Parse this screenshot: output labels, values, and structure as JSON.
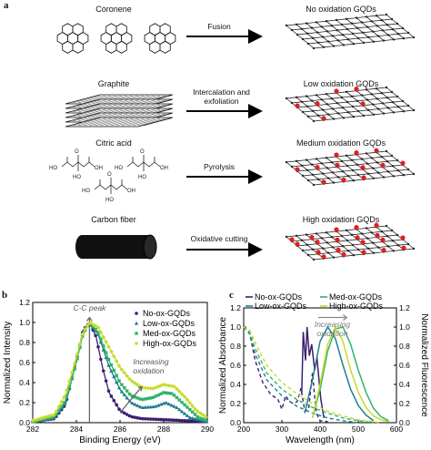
{
  "panel_a": {
    "letter": "a",
    "rows": [
      {
        "source": "Coronene",
        "process": [
          "Fusion"
        ],
        "product": "No oxidation GQDs",
        "ox_sites": 0
      },
      {
        "source": "Graphite",
        "process": [
          "Intercalation and",
          "exfoliation"
        ],
        "product": "Low oxidation GQDs",
        "ox_sites": 6
      },
      {
        "source": "Citric acid",
        "process": [
          "Pyrolysis"
        ],
        "product": "Medium oxidation GQDs",
        "ox_sites": 12
      },
      {
        "source": "Carbon fiber",
        "process": [
          "Oxidative cutting"
        ],
        "product": "High oxidation GQDs",
        "ox_sites": 20
      }
    ],
    "colors": {
      "lattice": "#222222",
      "oxygen": "#e02020"
    }
  },
  "chart_data": [
    {
      "panel": "b",
      "type": "line",
      "xlabel": "Binding Energy (eV)",
      "ylabel": "Normalized Intensity",
      "xlim": [
        282,
        290
      ],
      "ylim": [
        0,
        1.2
      ],
      "xticks": [
        "282",
        "284",
        "286",
        "288",
        "290"
      ],
      "yticks": [
        "0.0",
        "0.2",
        "0.4",
        "0.6",
        "0.8",
        "1.0",
        "1.2"
      ],
      "annotations": {
        "peak": "C-C peak",
        "trend": [
          "Increasing",
          "oxidation"
        ]
      },
      "legend_position": "top-right",
      "series": [
        {
          "name": "No-ox-GQDs",
          "color": "#3b1f6e",
          "marker": "circle",
          "x": [
            282,
            283,
            283.5,
            284,
            284.3,
            284.6,
            284.9,
            285.2,
            285.5,
            286,
            286.5,
            287,
            288,
            289,
            290
          ],
          "y": [
            0.01,
            0.04,
            0.18,
            0.62,
            0.92,
            1.0,
            0.86,
            0.55,
            0.3,
            0.12,
            0.06,
            0.04,
            0.03,
            0.02,
            0.01
          ]
        },
        {
          "name": "Low-ox-GQDs",
          "color": "#1f7e8c",
          "marker": "triangle",
          "x": [
            282,
            283,
            283.5,
            284,
            284.3,
            284.6,
            285,
            285.5,
            286,
            286.5,
            287,
            287.6,
            288.1,
            288.6,
            289.2,
            290
          ],
          "y": [
            0.01,
            0.05,
            0.2,
            0.6,
            0.9,
            1.0,
            0.88,
            0.56,
            0.33,
            0.2,
            0.15,
            0.16,
            0.2,
            0.15,
            0.05,
            0.01
          ]
        },
        {
          "name": "Med-ox-GQDs",
          "color": "#2fb36b",
          "marker": "square",
          "x": [
            282,
            283,
            283.5,
            284,
            284.3,
            284.6,
            285,
            285.5,
            286,
            286.5,
            287,
            287.5,
            288,
            288.4,
            289,
            289.6,
            290
          ],
          "y": [
            0.01,
            0.06,
            0.22,
            0.6,
            0.88,
            1.0,
            0.9,
            0.62,
            0.4,
            0.27,
            0.23,
            0.25,
            0.3,
            0.29,
            0.17,
            0.05,
            0.02
          ]
        },
        {
          "name": "High-ox-GQDs",
          "color": "#c5dc2a",
          "marker": "diamond",
          "x": [
            282,
            283,
            283.5,
            284,
            284.3,
            284.6,
            285,
            285.5,
            286,
            286.5,
            287,
            287.5,
            288,
            288.5,
            289,
            289.5,
            290
          ],
          "y": [
            0.02,
            0.08,
            0.28,
            0.65,
            0.9,
            1.0,
            0.95,
            0.75,
            0.55,
            0.42,
            0.35,
            0.34,
            0.38,
            0.36,
            0.25,
            0.12,
            0.05
          ]
        }
      ]
    },
    {
      "panel": "c",
      "type": "line",
      "xlabel": "Wavelength (nm)",
      "ylabel": "Normalized Absorbance",
      "ylabel_right": "Normalized Fluorescence",
      "xlim": [
        200,
        600
      ],
      "ylim": [
        0,
        1.2
      ],
      "xticks": [
        "200",
        "300",
        "400",
        "500",
        "600"
      ],
      "yticks": [
        "0.0",
        "0.2",
        "0.4",
        "0.6",
        "0.8",
        "1.0",
        "1.2"
      ],
      "yticks_right": [
        "0.0",
        "0.2",
        "0.4",
        "0.6",
        "0.8",
        "1.0",
        "1.2"
      ],
      "annotations": {
        "trend": [
          "Increasing",
          "oxidation"
        ]
      },
      "legend_position": "top",
      "series": [
        {
          "name": "No-ox-GQDs",
          "color": "#3b1f6e",
          "absorbance": {
            "x": [
              200,
              215,
              230,
              250,
              270,
              290,
              300,
              310,
              320,
              330,
              340,
              350,
              360,
              370,
              380,
              390,
              400,
              420
            ],
            "y": [
              1.0,
              0.95,
              0.65,
              0.42,
              0.3,
              0.24,
              0.14,
              0.28,
              0.22,
              0.2,
              0.22,
              0.36,
              0.12,
              0.14,
              0.52,
              0.1,
              0.02,
              0.01
            ]
          },
          "fluorescence": {
            "x": [
              352,
              356,
              362,
              366,
              372,
              378,
              386,
              392,
              396,
              402,
              410
            ],
            "y": [
              0.3,
              0.95,
              0.65,
              1.0,
              0.7,
              0.82,
              0.55,
              0.68,
              0.5,
              0.25,
              0.05
            ]
          }
        },
        {
          "name": "Low-ox-GQDs",
          "color": "#1f7e8c",
          "absorbance": {
            "x": [
              200,
              215,
              230,
              260,
              300,
              340,
              380,
              420,
              460,
              500
            ],
            "y": [
              1.0,
              0.93,
              0.72,
              0.45,
              0.28,
              0.17,
              0.1,
              0.05,
              0.02,
              0.0
            ]
          },
          "fluorescence": {
            "x": [
              360,
              380,
              400,
              420,
              440,
              460,
              480,
              500,
              520,
              540
            ],
            "y": [
              0.1,
              0.45,
              0.85,
              1.0,
              0.88,
              0.6,
              0.35,
              0.18,
              0.08,
              0.02
            ]
          }
        },
        {
          "name": "Med-ox-GQDs",
          "color": "#2fb36b",
          "absorbance": {
            "x": [
              200,
              215,
              230,
              260,
              300,
              340,
              380,
              420,
              460,
              500,
              540
            ],
            "y": [
              1.0,
              0.95,
              0.78,
              0.52,
              0.35,
              0.24,
              0.16,
              0.1,
              0.05,
              0.02,
              0.0
            ]
          },
          "fluorescence": {
            "x": [
              380,
              400,
              420,
              440,
              460,
              480,
              500,
              520,
              540,
              560,
              580
            ],
            "y": [
              0.05,
              0.35,
              0.75,
              0.98,
              1.0,
              0.82,
              0.55,
              0.32,
              0.15,
              0.06,
              0.02
            ]
          }
        },
        {
          "name": "High-ox-GQDs",
          "color": "#c5dc2a",
          "absorbance": {
            "x": [
              200,
              215,
              230,
              260,
              300,
              340,
              380,
              420,
              460,
              500,
              560
            ],
            "y": [
              1.0,
              0.97,
              0.84,
              0.6,
              0.42,
              0.3,
              0.2,
              0.12,
              0.07,
              0.03,
              0.0
            ]
          },
          "fluorescence": {
            "x": [
              380,
              400,
              420,
              440,
              460,
              480,
              500,
              520,
              540,
              560,
              580
            ],
            "y": [
              0.05,
              0.4,
              0.82,
              1.0,
              0.85,
              0.55,
              0.32,
              0.16,
              0.07,
              0.03,
              0.01
            ]
          }
        }
      ]
    }
  ]
}
